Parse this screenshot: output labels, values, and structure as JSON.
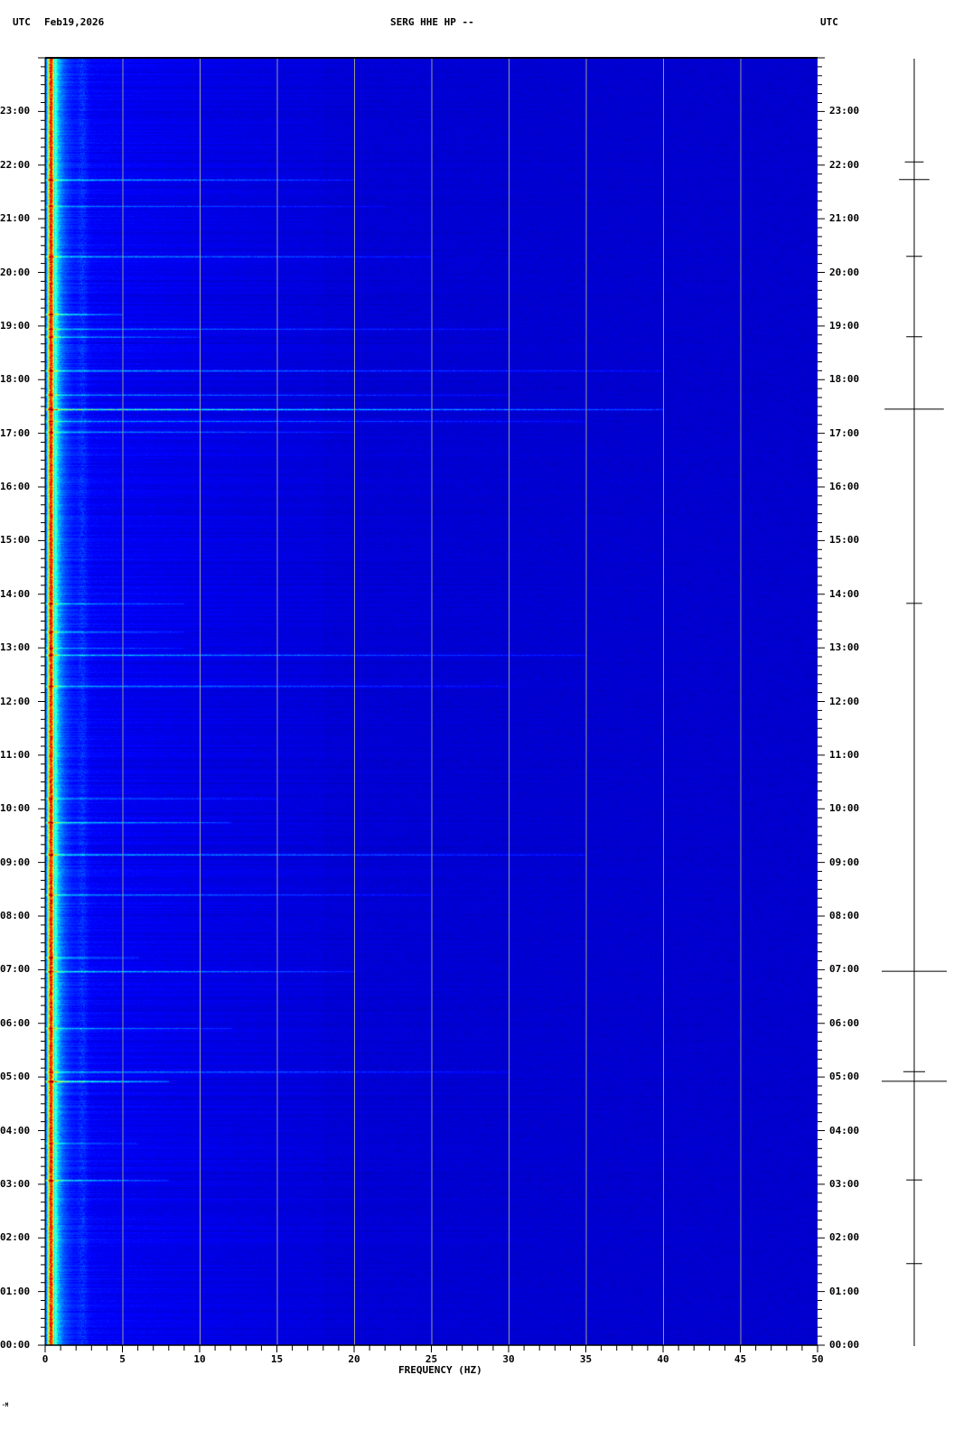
{
  "header": {
    "left_tz": "UTC",
    "date": "Feb19,2026",
    "station": "SERG HHE HP --",
    "right_tz": "UTC"
  },
  "footer_mark": "-M",
  "chart_data": {
    "type": "heatmap",
    "subtype": "spectrogram",
    "title": "SERG HHE HP --",
    "xlabel": "FREQUENCY (HZ)",
    "ylabel": "",
    "xlim": [
      0,
      50
    ],
    "ylim_hours_utc": [
      0,
      24
    ],
    "x_ticks": [
      "0",
      "5",
      "10",
      "15",
      "20",
      "25",
      "30",
      "35",
      "40",
      "45",
      "50"
    ],
    "y_ticks": [
      "00:00",
      "01:00",
      "02:00",
      "03:00",
      "04:00",
      "05:00",
      "06:00",
      "07:00",
      "08:00",
      "09:00",
      "10:00",
      "11:00",
      "12:00",
      "13:00",
      "14:00",
      "15:00",
      "16:00",
      "17:00",
      "18:00",
      "19:00",
      "20:00",
      "21:00",
      "22:00",
      "23:00"
    ],
    "grid": "vertical every 5 Hz",
    "colormap": "jet",
    "background_color": "#0000a8",
    "grid_color": "#999999",
    "dominant_band_hz": [
      0,
      1
    ],
    "events": [
      {
        "hour": 21.73,
        "max_hz": 20,
        "strength": 0.55
      },
      {
        "hour": 21.24,
        "max_hz": 22,
        "strength": 0.3
      },
      {
        "hour": 20.3,
        "max_hz": 25,
        "strength": 0.5
      },
      {
        "hour": 19.22,
        "max_hz": 5,
        "strength": 0.7
      },
      {
        "hour": 18.95,
        "max_hz": 30,
        "strength": 0.35
      },
      {
        "hour": 18.8,
        "max_hz": 10,
        "strength": 0.5
      },
      {
        "hour": 18.17,
        "max_hz": 40,
        "strength": 0.4
      },
      {
        "hour": 17.72,
        "max_hz": 30,
        "strength": 0.35
      },
      {
        "hour": 17.45,
        "max_hz": 40,
        "strength": 0.9
      },
      {
        "hour": 17.23,
        "max_hz": 35,
        "strength": 0.45
      },
      {
        "hour": 17.03,
        "max_hz": 20,
        "strength": 0.4
      },
      {
        "hour": 13.83,
        "max_hz": 9,
        "strength": 0.4
      },
      {
        "hour": 13.3,
        "max_hz": 9,
        "strength": 0.45
      },
      {
        "hour": 13.0,
        "max_hz": 9,
        "strength": 0.35
      },
      {
        "hour": 12.87,
        "max_hz": 35,
        "strength": 0.45
      },
      {
        "hour": 12.29,
        "max_hz": 30,
        "strength": 0.4
      },
      {
        "hour": 10.2,
        "max_hz": 15,
        "strength": 0.35
      },
      {
        "hour": 9.75,
        "max_hz": 12,
        "strength": 0.55
      },
      {
        "hour": 9.15,
        "max_hz": 35,
        "strength": 0.5
      },
      {
        "hour": 8.4,
        "max_hz": 25,
        "strength": 0.35
      },
      {
        "hour": 7.23,
        "max_hz": 6,
        "strength": 0.45
      },
      {
        "hour": 6.97,
        "max_hz": 20,
        "strength": 0.55
      },
      {
        "hour": 5.91,
        "max_hz": 12,
        "strength": 0.4
      },
      {
        "hour": 5.1,
        "max_hz": 30,
        "strength": 0.4
      },
      {
        "hour": 4.92,
        "max_hz": 8,
        "strength": 0.95
      },
      {
        "hour": 3.77,
        "max_hz": 6,
        "strength": 0.35
      },
      {
        "hour": 3.08,
        "max_hz": 8,
        "strength": 0.6
      }
    ],
    "trace_markers": [
      {
        "hour": 22.06,
        "width": 0.2
      },
      {
        "hour": 21.73,
        "width": 0.4
      },
      {
        "hour": 20.3,
        "width": 0.15
      },
      {
        "hour": 18.8,
        "width": 0.15
      },
      {
        "hour": 17.45,
        "width": 0.9
      },
      {
        "hour": 13.83,
        "width": 0.15
      },
      {
        "hour": 6.97,
        "width": 1.0
      },
      {
        "hour": 5.1,
        "width": 0.25
      },
      {
        "hour": 4.92,
        "width": 1.0
      },
      {
        "hour": 3.08,
        "width": 0.15
      },
      {
        "hour": 1.52,
        "width": 0.15
      }
    ]
  }
}
